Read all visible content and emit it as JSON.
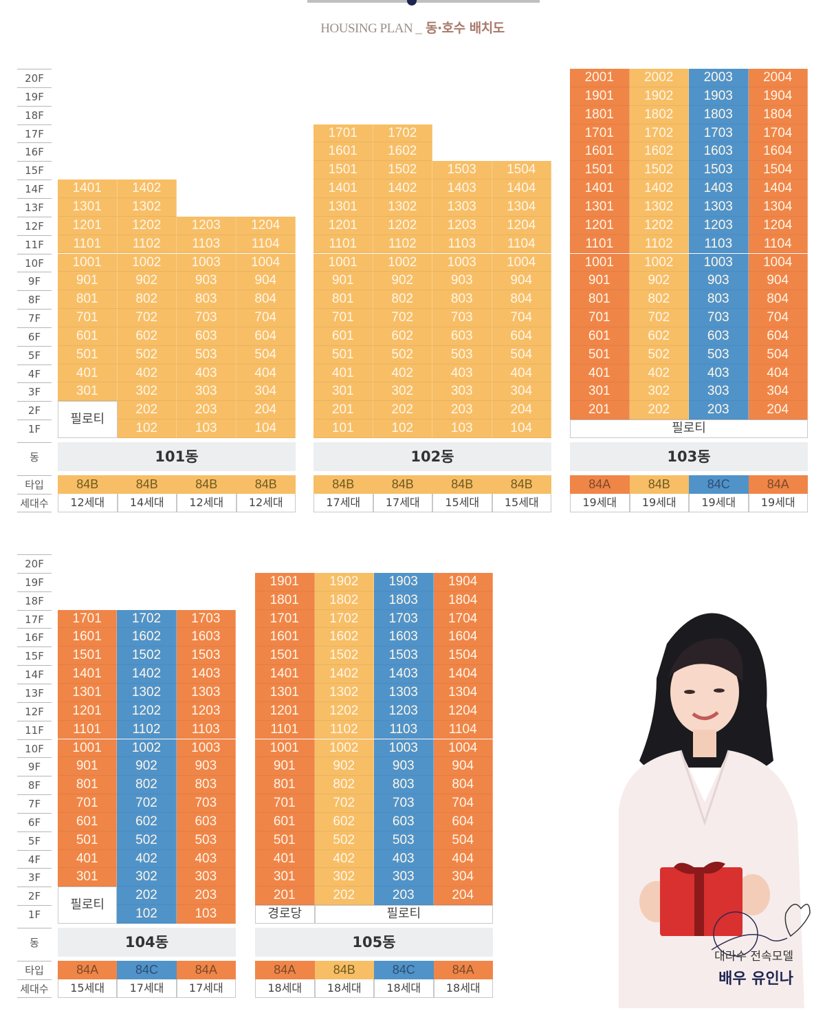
{
  "header": {
    "title_en": "HOUSING PLAN _",
    "title_ko": "동·호수 배치도"
  },
  "labels": {
    "dong": "동",
    "type": "타입",
    "households": "세대수",
    "piloti": "필로티",
    "senior_center": "경로당"
  },
  "floors": [
    "20F",
    "19F",
    "18F",
    "17F",
    "16F",
    "15F",
    "14F",
    "13F",
    "12F",
    "11F",
    "10F",
    "9F",
    "8F",
    "7F",
    "6F",
    "5F",
    "4F",
    "3F",
    "2F",
    "1F"
  ],
  "colors": {
    "84A": "#f08548",
    "84B": "#f7be66",
    "84C": "#5093c9"
  },
  "buildings": [
    {
      "name": "101동",
      "lines": [
        {
          "type": "84B",
          "households": "12세대",
          "top_floor": 14,
          "bottom_floor": 3
        },
        {
          "type": "84B",
          "households": "14세대",
          "top_floor": 14,
          "bottom_floor": 1
        },
        {
          "type": "84B",
          "households": "12세대",
          "top_floor": 12,
          "bottom_floor": 1
        },
        {
          "type": "84B",
          "households": "12세대",
          "top_floor": 12,
          "bottom_floor": 1
        }
      ],
      "ground": [
        {
          "label": "필로티",
          "col_start": 0,
          "col_span": 1,
          "floors": [
            2,
            1
          ]
        }
      ]
    },
    {
      "name": "102동",
      "lines": [
        {
          "type": "84B",
          "households": "17세대",
          "top_floor": 17,
          "bottom_floor": 1
        },
        {
          "type": "84B",
          "households": "17세대",
          "top_floor": 17,
          "bottom_floor": 1
        },
        {
          "type": "84B",
          "households": "15세대",
          "top_floor": 15,
          "bottom_floor": 1
        },
        {
          "type": "84B",
          "households": "15세대",
          "top_floor": 15,
          "bottom_floor": 1
        }
      ],
      "ground": []
    },
    {
      "name": "103동",
      "lines": [
        {
          "type": "84A",
          "households": "19세대",
          "top_floor": 20,
          "bottom_floor": 2
        },
        {
          "type": "84B",
          "households": "19세대",
          "top_floor": 20,
          "bottom_floor": 2
        },
        {
          "type": "84C",
          "households": "19세대",
          "top_floor": 20,
          "bottom_floor": 2
        },
        {
          "type": "84A",
          "households": "19세대",
          "top_floor": 20,
          "bottom_floor": 2
        }
      ],
      "ground": [
        {
          "label": "필로티",
          "col_start": 0,
          "col_span": 4,
          "floors": [
            1
          ]
        }
      ]
    },
    {
      "name": "104동",
      "lines": [
        {
          "type": "84A",
          "households": "15세대",
          "top_floor": 17,
          "bottom_floor": 3
        },
        {
          "type": "84C",
          "households": "17세대",
          "top_floor": 17,
          "bottom_floor": 1
        },
        {
          "type": "84A",
          "households": "17세대",
          "top_floor": 17,
          "bottom_floor": 1
        }
      ],
      "ground": [
        {
          "label": "필로티",
          "col_start": 0,
          "col_span": 1,
          "floors": [
            2,
            1
          ]
        }
      ]
    },
    {
      "name": "105동",
      "lines": [
        {
          "type": "84A",
          "households": "18세대",
          "top_floor": 19,
          "bottom_floor": 2
        },
        {
          "type": "84B",
          "households": "18세대",
          "top_floor": 19,
          "bottom_floor": 2
        },
        {
          "type": "84C",
          "households": "18세대",
          "top_floor": 19,
          "bottom_floor": 2
        },
        {
          "type": "84A",
          "households": "18세대",
          "top_floor": 19,
          "bottom_floor": 2
        }
      ],
      "ground": [
        {
          "label": "경로당",
          "col_start": 0,
          "col_span": 1,
          "floors": [
            1
          ]
        },
        {
          "label": "필로티",
          "col_start": 1,
          "col_span": 3,
          "floors": [
            1
          ]
        }
      ]
    }
  ],
  "model": {
    "subtitle": "대라수 전속모델",
    "name": "배우 유인나"
  }
}
